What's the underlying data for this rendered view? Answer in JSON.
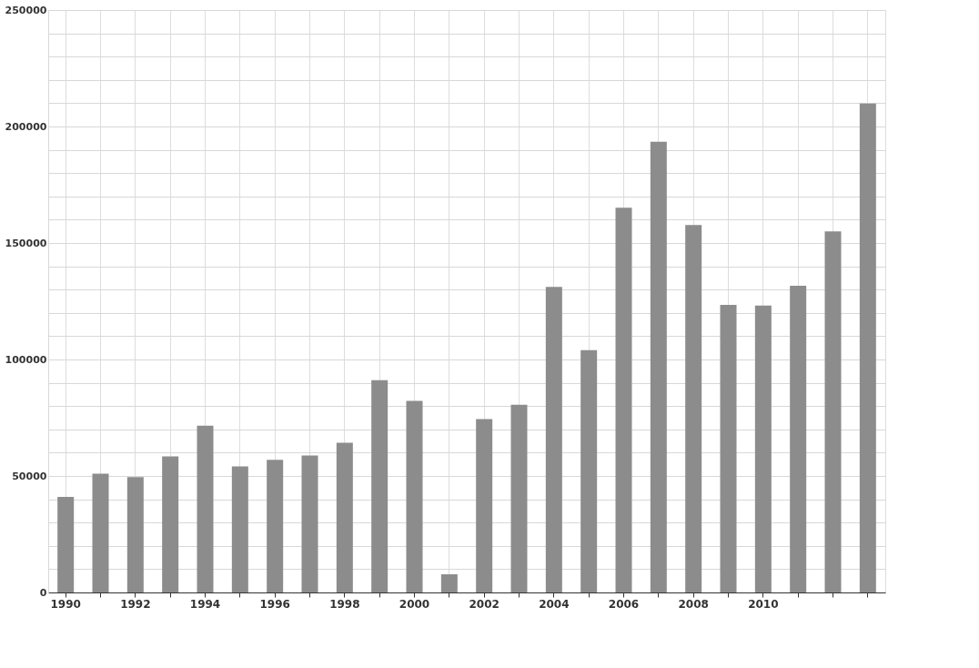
{
  "chart_data": {
    "type": "bar",
    "categories": [
      "1990",
      null,
      "1992",
      null,
      "1994",
      null,
      "1996",
      null,
      "1998",
      null,
      "2000",
      null,
      "2002",
      null,
      "2004",
      null,
      "2006",
      null,
      "2008",
      null,
      "2010",
      null,
      null,
      null
    ],
    "values": [
      41000,
      51000,
      49500,
      58400,
      71600,
      54100,
      56900,
      58800,
      64300,
      91100,
      82200,
      7800,
      74400,
      80600,
      131200,
      104000,
      165100,
      193500,
      157700,
      123400,
      123100,
      131600,
      155000,
      209900
    ],
    "color": "#8c8c8c",
    "ylim": [
      0,
      250000
    ],
    "yticks": [
      0,
      {
        "value": 10000,
        "label": null
      },
      {
        "value": 20000,
        "label": null
      },
      {
        "value": 30000,
        "label": null
      },
      {
        "value": 40000,
        "label": null
      },
      50000,
      {
        "value": 60000,
        "label": null
      },
      {
        "value": 70000,
        "label": null
      },
      {
        "value": 80000,
        "label": null
      },
      {
        "value": 90000,
        "label": null
      },
      100000,
      {
        "value": 110000,
        "label": null
      },
      {
        "value": 120000,
        "label": null
      },
      {
        "value": 130000,
        "label": null
      },
      {
        "value": 140000,
        "label": null
      },
      150000,
      {
        "value": 160000,
        "label": null
      },
      {
        "value": 170000,
        "label": null
      },
      {
        "value": 180000,
        "label": null
      },
      {
        "value": 190000,
        "label": null
      },
      200000,
      {
        "value": 210000,
        "label": null
      },
      {
        "value": 220000,
        "label": null
      },
      {
        "value": 230000,
        "label": null
      },
      {
        "value": 240000,
        "label": null
      },
      250000
    ],
    "grid": true
  }
}
